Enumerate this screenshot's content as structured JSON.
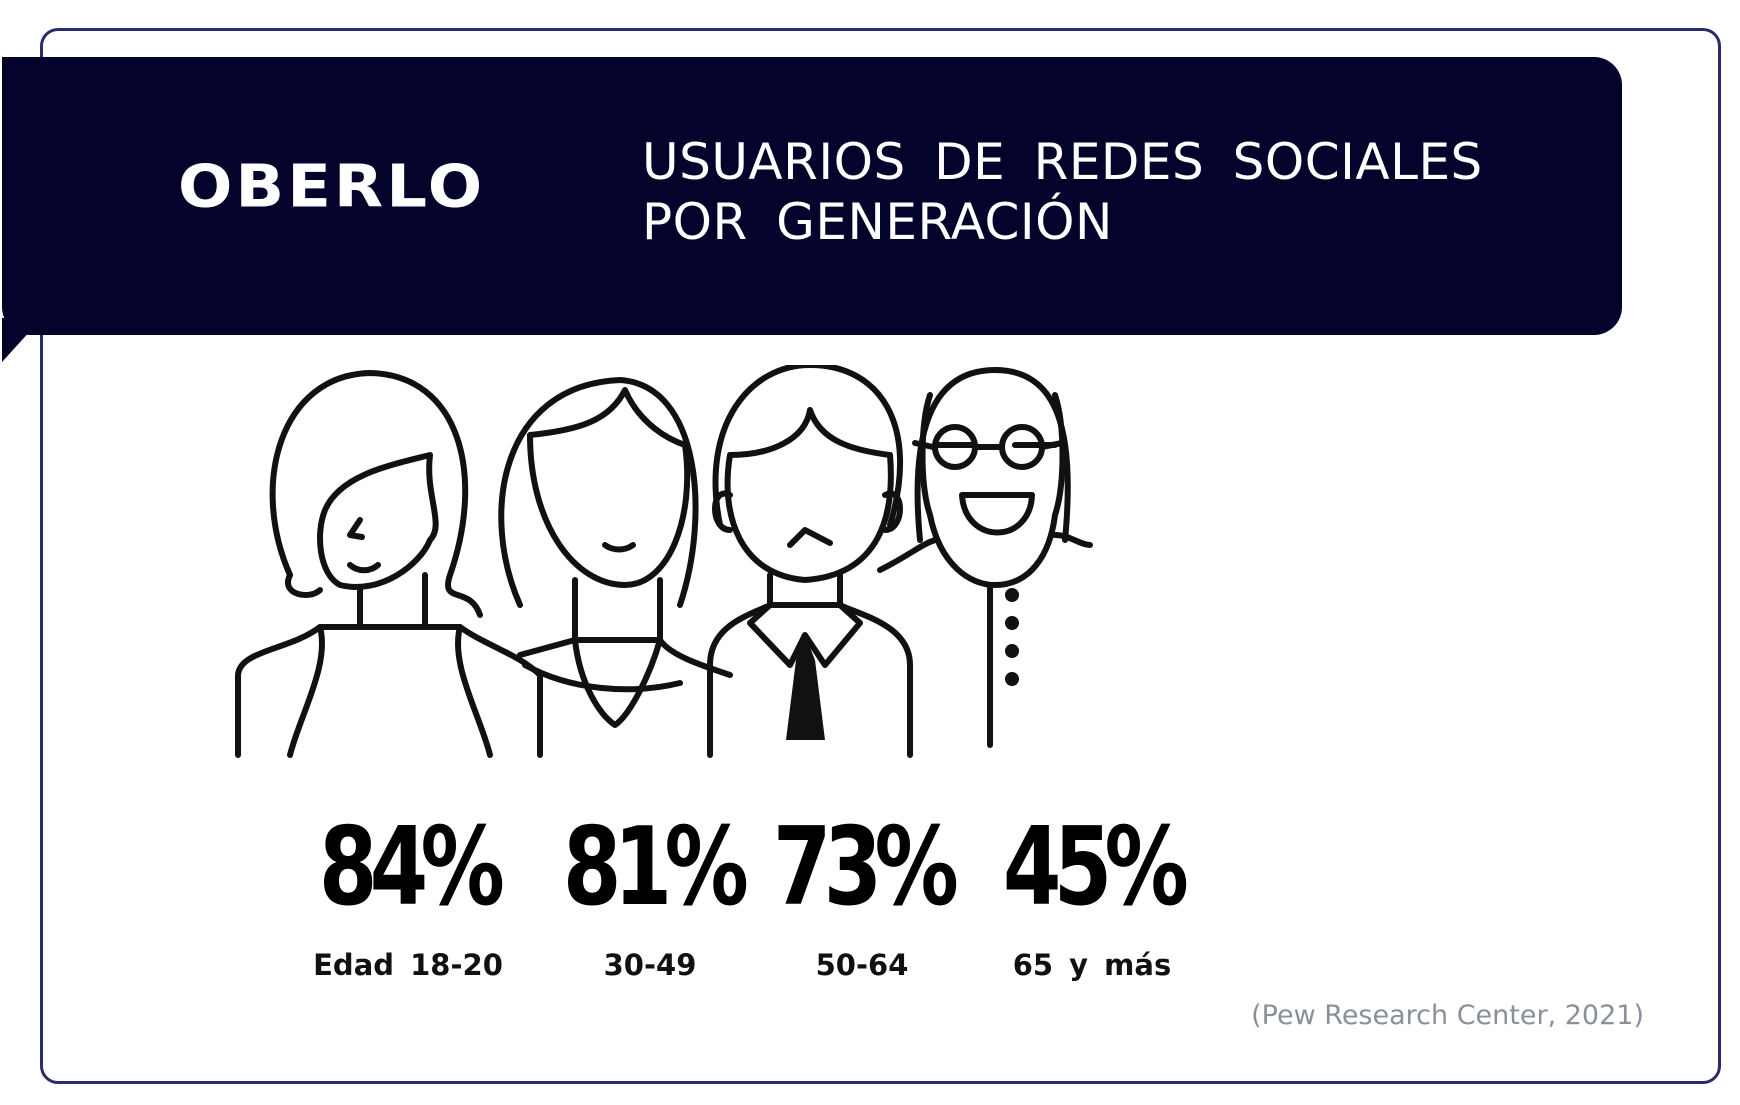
{
  "header": {
    "logo": "OBERLO",
    "title_line1": "USUARIOS DE REDES SOCIALES",
    "title_line2": "POR GENERACIÓN"
  },
  "chart_data": {
    "type": "bar",
    "title": "USUARIOS DE REDES SOCIALES POR GENERACIÓN",
    "categories": [
      "Edad 18-20",
      "30-49",
      "50-64",
      "65 y más"
    ],
    "values": [
      84,
      81,
      73,
      45
    ],
    "value_labels": [
      "84%",
      "81%",
      "73%",
      "45%"
    ],
    "unit": "%"
  },
  "source": "(Pew Research Center, 2021)",
  "colors": {
    "banner": "#03032b",
    "border": "#2b2c6b",
    "text": "#000000",
    "source": "#8a8f9c"
  }
}
